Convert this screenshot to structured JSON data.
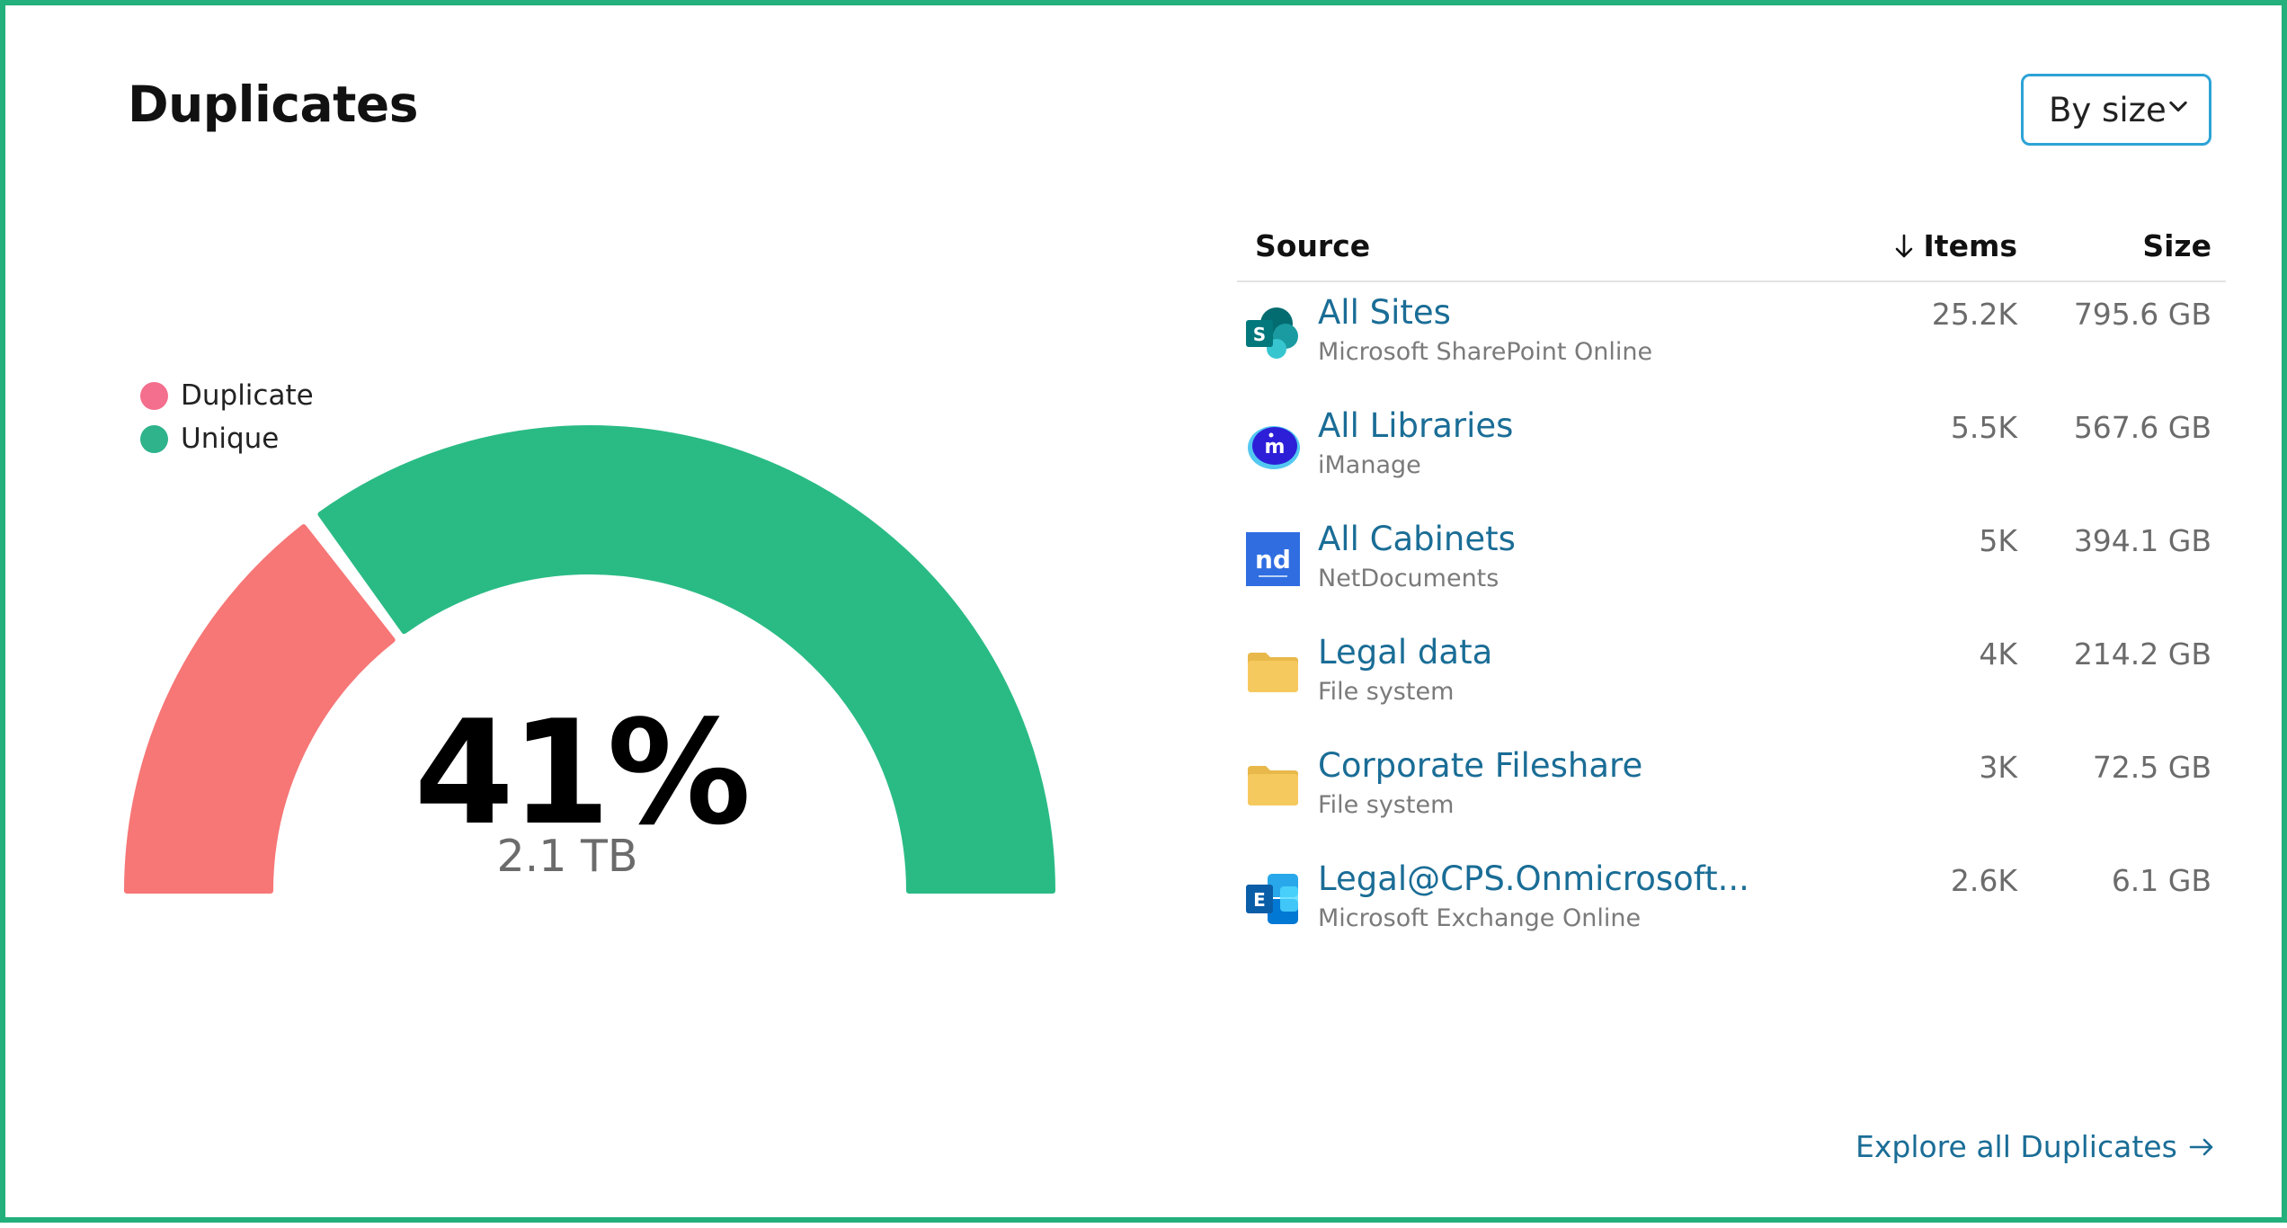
{
  "header": {
    "title": "Duplicates"
  },
  "sort_select": {
    "value": "By size"
  },
  "legend": {
    "items": [
      {
        "label": "Duplicate",
        "color": "#f46f8d"
      },
      {
        "label": "Unique",
        "color": "#2eb38b"
      }
    ]
  },
  "gauge": {
    "percent_label": "41%",
    "size_label": "2.1 TB",
    "duplicate_fraction": 0.41,
    "duplicate_color": "#f77676",
    "unique_color": "#2abb85"
  },
  "table": {
    "headers": {
      "source": "Source",
      "items": "Items",
      "size": "Size"
    },
    "rows": [
      {
        "name": "All Sites",
        "subtitle": "Microsoft SharePoint Online",
        "items": "25.2K",
        "size": "795.6 GB",
        "icon": "sharepoint-icon"
      },
      {
        "name": "All Libraries",
        "subtitle": "iManage",
        "items": "5.5K",
        "size": "567.6 GB",
        "icon": "imanage-icon"
      },
      {
        "name": "All Cabinets",
        "subtitle": "NetDocuments",
        "items": "5K",
        "size": "394.1 GB",
        "icon": "netdocuments-icon"
      },
      {
        "name": "Legal data",
        "subtitle": "File system",
        "items": "4K",
        "size": "214.2 GB",
        "icon": "folder-icon"
      },
      {
        "name": "Corporate Fileshare",
        "subtitle": "File system",
        "items": "3K",
        "size": "72.5 GB",
        "icon": "folder-icon"
      },
      {
        "name": "Legal@CPS.Onmicrosoft...",
        "subtitle": "Microsoft Exchange Online",
        "items": "2.6K",
        "size": "6.1 GB",
        "icon": "exchange-icon"
      }
    ]
  },
  "footer": {
    "explore_label": "Explore all Duplicates"
  }
}
